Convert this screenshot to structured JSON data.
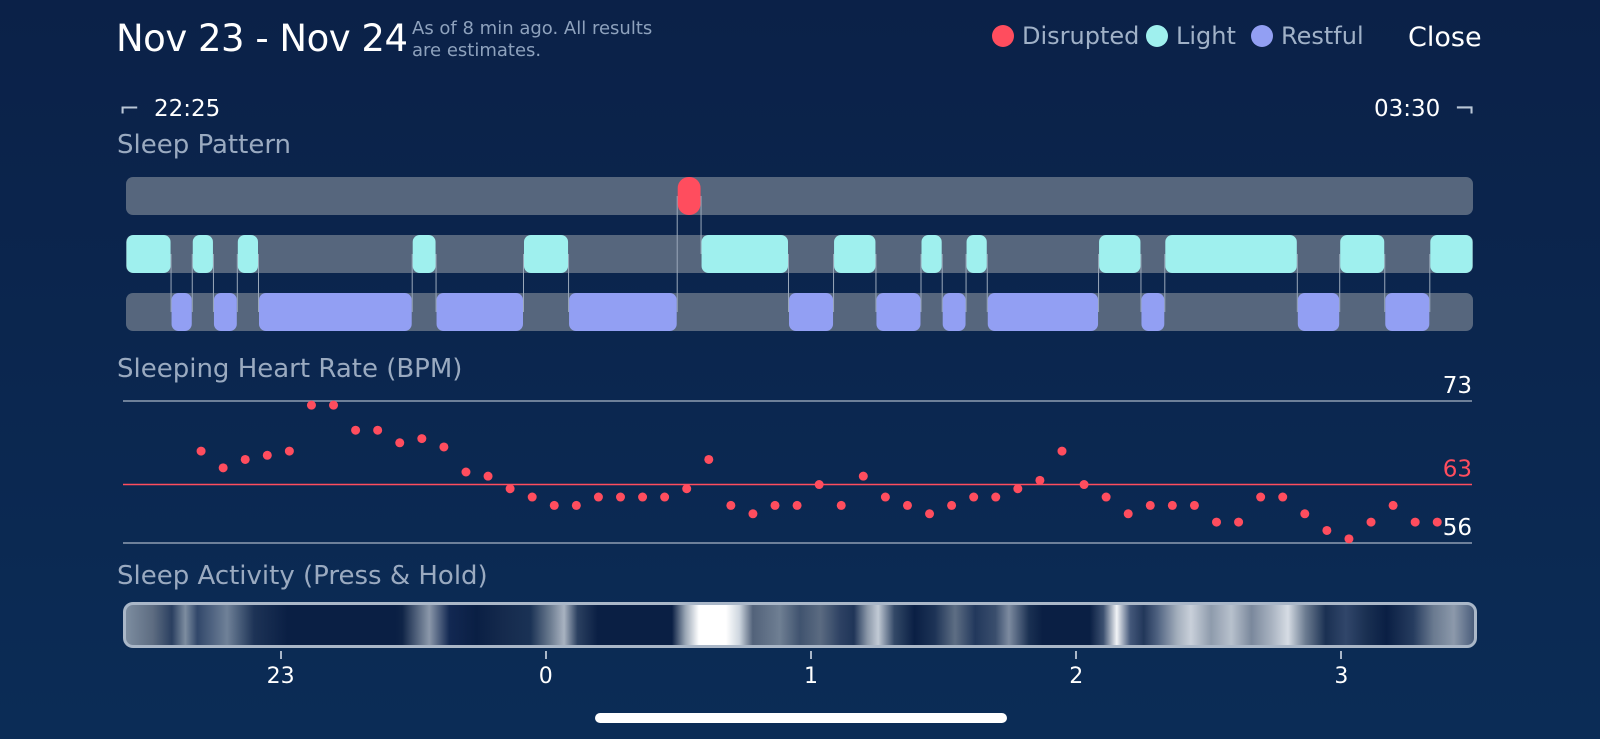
{
  "header": {
    "date_range": "Nov 23 - Nov 24",
    "subtitle": "As of 8 min ago. All results are estimates.",
    "close_label": "Close"
  },
  "legend": [
    {
      "label": "Disrupted",
      "color": "#ff4d5e"
    },
    {
      "label": "Light",
      "color": "#9ff0ee"
    },
    {
      "label": "Restful",
      "color": "#929ff3"
    }
  ],
  "time_range": {
    "start": "22:25",
    "end": "03:30"
  },
  "sections": {
    "pattern_title": "Sleep Pattern",
    "heart_title": "Sleeping Heart Rate (BPM)",
    "activity_title": "Sleep Activity (Press & Hold)"
  },
  "chart_data": [
    {
      "type": "timeline",
      "title": "Sleep Pattern",
      "x_unit": "hours from 22:25",
      "x_range": [
        0,
        5.083
      ],
      "rows": [
        "Disrupted",
        "Light",
        "Restful"
      ],
      "segments": [
        {
          "stage": "Light",
          "start": 0.0,
          "end": 0.17
        },
        {
          "stage": "Restful",
          "start": 0.17,
          "end": 0.25
        },
        {
          "stage": "Light",
          "start": 0.25,
          "end": 0.33
        },
        {
          "stage": "Restful",
          "start": 0.33,
          "end": 0.42
        },
        {
          "stage": "Light",
          "start": 0.42,
          "end": 0.5
        },
        {
          "stage": "Restful",
          "start": 0.5,
          "end": 1.08
        },
        {
          "stage": "Light",
          "start": 1.08,
          "end": 1.17
        },
        {
          "stage": "Restful",
          "start": 1.17,
          "end": 1.5
        },
        {
          "stage": "Light",
          "start": 1.5,
          "end": 1.67
        },
        {
          "stage": "Restful",
          "start": 1.67,
          "end": 2.08
        },
        {
          "stage": "Disrupted",
          "start": 2.08,
          "end": 2.17
        },
        {
          "stage": "Light",
          "start": 2.17,
          "end": 2.5
        },
        {
          "stage": "Restful",
          "start": 2.5,
          "end": 2.67
        },
        {
          "stage": "Light",
          "start": 2.67,
          "end": 2.83
        },
        {
          "stage": "Restful",
          "start": 2.83,
          "end": 3.0
        },
        {
          "stage": "Light",
          "start": 3.0,
          "end": 3.08
        },
        {
          "stage": "Restful",
          "start": 3.08,
          "end": 3.17
        },
        {
          "stage": "Light",
          "start": 3.17,
          "end": 3.25
        },
        {
          "stage": "Restful",
          "start": 3.25,
          "end": 3.67
        },
        {
          "stage": "Light",
          "start": 3.67,
          "end": 3.83
        },
        {
          "stage": "Restful",
          "start": 3.83,
          "end": 3.92
        },
        {
          "stage": "Light",
          "start": 3.92,
          "end": 4.42
        },
        {
          "stage": "Restful",
          "start": 4.42,
          "end": 4.58
        },
        {
          "stage": "Light",
          "start": 4.58,
          "end": 4.75
        },
        {
          "stage": "Restful",
          "start": 4.75,
          "end": 4.92
        },
        {
          "stage": "Light",
          "start": 4.92,
          "end": 5.083
        }
      ]
    },
    {
      "type": "scatter",
      "title": "Sleeping Heart Rate (BPM)",
      "x_unit": "hours from 22:25",
      "x_range": [
        0,
        5.083
      ],
      "ylim": [
        56,
        73
      ],
      "gridlines": [
        73,
        63,
        56
      ],
      "average": 63,
      "x_step": 0.0833,
      "values": [
        67,
        65,
        66,
        66.5,
        67,
        72.5,
        72.5,
        69.5,
        69.5,
        68,
        68.5,
        67.5,
        64.5,
        64,
        62.5,
        61.5,
        60.5,
        60.5,
        61.5,
        61.5,
        61.5,
        61.5,
        62.5,
        66,
        60.5,
        59.5,
        60.5,
        60.5,
        63,
        60.5,
        64,
        61.5,
        60.5,
        59.5,
        60.5,
        61.5,
        61.5,
        62.5,
        63.5,
        67,
        63,
        61.5,
        59.5,
        60.5,
        60.5,
        60.5,
        58.5,
        58.5,
        61.5,
        61.5,
        59.5,
        57.5,
        56.5,
        58.5,
        60.5,
        58.5,
        58.5
      ]
    },
    {
      "type": "heatmap",
      "title": "Sleep Activity (Press & Hold)",
      "x_ticks": [
        "23",
        "0",
        "1",
        "2",
        "3"
      ],
      "x_tick_hours_from_start": [
        0.583,
        1.583,
        2.583,
        3.583,
        4.583
      ]
    }
  ]
}
